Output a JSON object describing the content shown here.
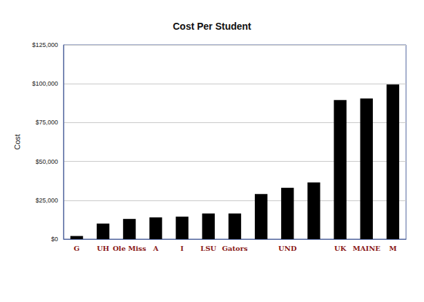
{
  "chart_data": {
    "type": "bar",
    "title": "Cost Per Student",
    "y_label": "Cost",
    "categories": [
      "G",
      "UH",
      "Ole Miss",
      "A",
      "I",
      "LSU",
      "Gators",
      null,
      "UND",
      null,
      "UK",
      "MAINE",
      "M"
    ],
    "values": [
      2000,
      10000,
      13000,
      14000,
      14500,
      16500,
      16500,
      29000,
      33000,
      36500,
      89500,
      90500,
      99500
    ],
    "color": "#000000",
    "ylim": [
      0,
      125000
    ],
    "yticks": [
      {
        "value": 0,
        "label": "$0"
      },
      {
        "value": 25000,
        "label": "$25,000"
      },
      {
        "value": 50000,
        "label": "$50,000"
      },
      {
        "value": 75000,
        "label": "$75,000"
      },
      {
        "value": 100000,
        "label": "$100,000"
      },
      {
        "value": 125000,
        "label": "$125,000"
      }
    ],
    "grid": true
  }
}
